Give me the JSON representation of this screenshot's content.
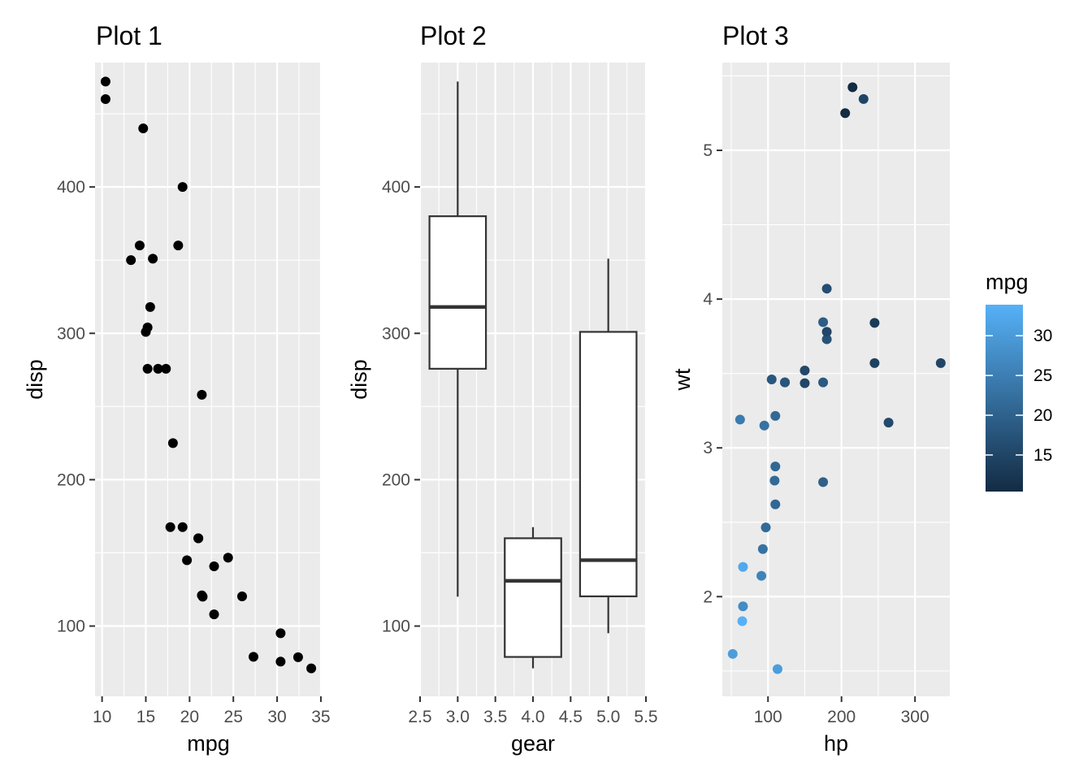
{
  "chart_data": [
    {
      "type": "scatter",
      "title": "Plot 1",
      "xlabel": "mpg",
      "ylabel": "disp",
      "xlim": [
        9.2,
        35.1
      ],
      "ylim": [
        52,
        485
      ],
      "xticks": [
        "10",
        "15",
        "20",
        "25",
        "30",
        "35"
      ],
      "yticks": [
        "100",
        "200",
        "300",
        "400"
      ],
      "point_color": "#000000",
      "x": [
        21.0,
        21.0,
        22.8,
        21.4,
        18.7,
        18.1,
        14.3,
        24.4,
        22.8,
        19.2,
        17.8,
        16.4,
        17.3,
        15.2,
        10.4,
        10.4,
        14.7,
        32.4,
        30.4,
        33.9,
        21.5,
        15.5,
        15.2,
        13.3,
        19.2,
        27.3,
        26.0,
        30.4,
        15.8,
        19.7,
        15.0,
        21.4
      ],
      "y": [
        160,
        160,
        108,
        258,
        360,
        225,
        360,
        146.7,
        140.8,
        167.6,
        167.6,
        275.8,
        275.8,
        275.8,
        472,
        460,
        440,
        78.7,
        75.7,
        71.1,
        120.1,
        318,
        304,
        350,
        400,
        79,
        120.3,
        95.1,
        351,
        145,
        301,
        121
      ]
    },
    {
      "type": "box",
      "title": "Plot 2",
      "xlabel": "gear",
      "ylabel": "disp",
      "xlim": [
        2.5,
        5.5
      ],
      "ylim": [
        52,
        485
      ],
      "xticks": [
        "2.5",
        "3.0",
        "3.5",
        "4.0",
        "4.5",
        "5.0",
        "5.5"
      ],
      "yticks": [
        "100",
        "200",
        "300",
        "400"
      ],
      "boxes": [
        {
          "x": 3,
          "min": 120.1,
          "q1": 275.8,
          "median": 318,
          "q3": 380,
          "max": 472
        },
        {
          "x": 4,
          "min": 71.1,
          "q1": 78.9,
          "median": 130.9,
          "q3": 160,
          "max": 167.6
        },
        {
          "x": 5,
          "min": 95.1,
          "q1": 120.3,
          "median": 145,
          "q3": 301,
          "max": 351
        }
      ]
    },
    {
      "type": "scatter",
      "title": "Plot 3",
      "xlabel": "hp",
      "ylabel": "wt",
      "xlim": [
        37.85,
        347.35
      ],
      "ylim": [
        1.33,
        5.59
      ],
      "xticks": [
        "100",
        "200",
        "300"
      ],
      "yticks": [
        "2",
        "3",
        "4",
        "5"
      ],
      "color_by": "mpg",
      "points": [
        {
          "hp": 110,
          "wt": 2.62,
          "mpg": 21.0
        },
        {
          "hp": 110,
          "wt": 2.875,
          "mpg": 21.0
        },
        {
          "hp": 93,
          "wt": 2.32,
          "mpg": 22.8
        },
        {
          "hp": 110,
          "wt": 3.215,
          "mpg": 21.4
        },
        {
          "hp": 175,
          "wt": 3.44,
          "mpg": 18.7
        },
        {
          "hp": 105,
          "wt": 3.46,
          "mpg": 18.1
        },
        {
          "hp": 245,
          "wt": 3.57,
          "mpg": 14.3
        },
        {
          "hp": 62,
          "wt": 3.19,
          "mpg": 24.4
        },
        {
          "hp": 95,
          "wt": 3.15,
          "mpg": 22.8
        },
        {
          "hp": 123,
          "wt": 3.44,
          "mpg": 19.2
        },
        {
          "hp": 123,
          "wt": 3.44,
          "mpg": 17.8
        },
        {
          "hp": 180,
          "wt": 4.07,
          "mpg": 16.4
        },
        {
          "hp": 180,
          "wt": 3.73,
          "mpg": 17.3
        },
        {
          "hp": 180,
          "wt": 3.78,
          "mpg": 15.2
        },
        {
          "hp": 205,
          "wt": 5.25,
          "mpg": 10.4
        },
        {
          "hp": 215,
          "wt": 5.424,
          "mpg": 10.4
        },
        {
          "hp": 230,
          "wt": 5.345,
          "mpg": 14.7
        },
        {
          "hp": 66,
          "wt": 2.2,
          "mpg": 32.4
        },
        {
          "hp": 52,
          "wt": 1.615,
          "mpg": 30.4
        },
        {
          "hp": 65,
          "wt": 1.835,
          "mpg": 33.9
        },
        {
          "hp": 97,
          "wt": 2.465,
          "mpg": 21.5
        },
        {
          "hp": 150,
          "wt": 3.52,
          "mpg": 15.5
        },
        {
          "hp": 150,
          "wt": 3.435,
          "mpg": 15.2
        },
        {
          "hp": 245,
          "wt": 3.84,
          "mpg": 13.3
        },
        {
          "hp": 175,
          "wt": 3.845,
          "mpg": 19.2
        },
        {
          "hp": 66,
          "wt": 1.935,
          "mpg": 27.3
        },
        {
          "hp": 91,
          "wt": 2.14,
          "mpg": 26.0
        },
        {
          "hp": 113,
          "wt": 1.513,
          "mpg": 30.4
        },
        {
          "hp": 264,
          "wt": 3.17,
          "mpg": 15.8
        },
        {
          "hp": 175,
          "wt": 2.77,
          "mpg": 19.7
        },
        {
          "hp": 335,
          "wt": 3.57,
          "mpg": 15.0
        },
        {
          "hp": 109,
          "wt": 2.78,
          "mpg": 21.4
        }
      ],
      "legend": {
        "title": "mpg",
        "position": "right",
        "range": [
          10.4,
          33.9
        ],
        "ticks": [
          "15",
          "20",
          "25",
          "30"
        ],
        "low_color": "#132b43",
        "high_color": "#56b1f7"
      }
    }
  ]
}
